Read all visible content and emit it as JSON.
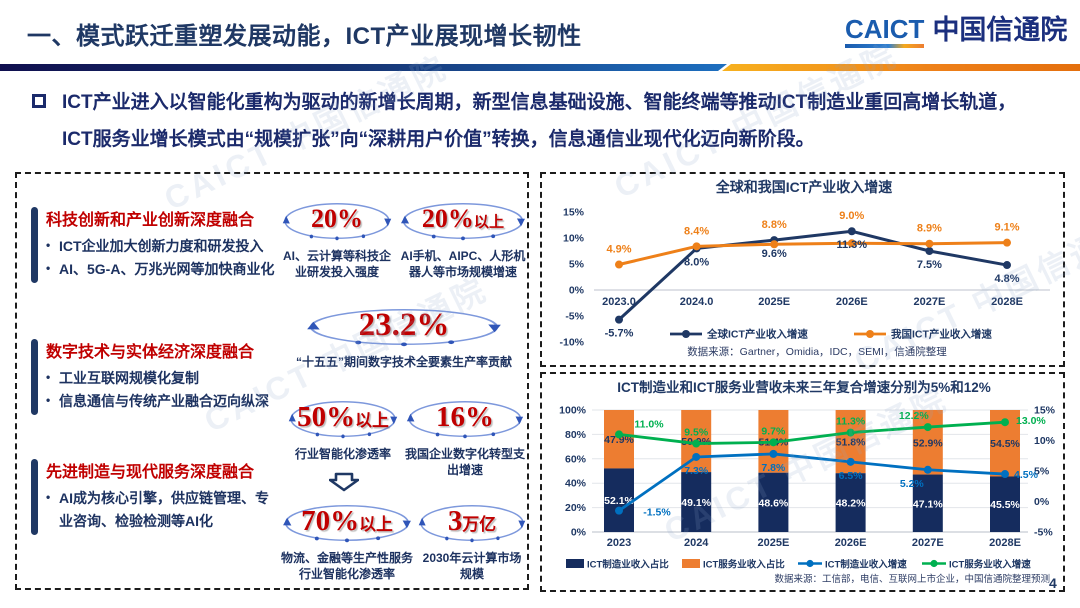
{
  "page": {
    "title": "一、模式跃迁重塑发展动能，ICT产业展现增长韧性",
    "page_number": "4",
    "watermark": "CAICT 中国信通院"
  },
  "logo": {
    "caict": "CAICT",
    "cn": "中国信通院"
  },
  "intro": {
    "text": "ICT产业进入以智能化重构为驱动的新增长周期，新型信息基础设施、智能终端等推动ICT制造业重回高增长轨道，ICT服务业增长模式由“规模扩张”向“深耕用户价值”转换，信息通信业现代化迈向新阶段。"
  },
  "left_panel": {
    "sections": [
      {
        "heading": "科技创新和产业创新深度融合",
        "bullets": [
          "ICT企业加大创新力度和研发投入",
          "AI、5G-A、万兆光网等加快商业化"
        ]
      },
      {
        "heading": "数字技术与实体经济深度融合",
        "bullets": [
          "工业互联网规模化复制",
          "信息通信与传统产业融合迈向纵深"
        ]
      },
      {
        "heading": "先进制造与现代服务深度融合",
        "bullets": [
          "AI成为核心引擎，供应链管理、专业咨询、检验检测等AI化"
        ]
      }
    ],
    "stats": [
      {
        "value": "20%",
        "suffix": "",
        "caption": "AI、云计算等科技企业研发投入强度"
      },
      {
        "value": "20%",
        "suffix": "以上",
        "caption": "AI手机、AIPC、人形机器人等市场规模增速"
      },
      {
        "value": "23.2%",
        "suffix": "",
        "caption": "“十五五”期间数字技术全要素生产率贡献"
      },
      {
        "value": "50%",
        "suffix": "以上",
        "caption": "行业智能化渗透率"
      },
      {
        "value": "16%",
        "suffix": "",
        "caption": "我国企业数字化转型支出增速"
      },
      {
        "value": "70%",
        "suffix": "以上",
        "caption": "物流、金融等生产性服务行业智能化渗透率"
      },
      {
        "value": "3",
        "suffix": "万亿",
        "caption": "2030年云计算市场规模"
      }
    ]
  },
  "chart_data": [
    {
      "type": "line",
      "title": "全球和我国ICT产业收入增速",
      "categories": [
        "2023.0",
        "2024.0",
        "2025E",
        "2026E",
        "2027E",
        "2028E"
      ],
      "series": [
        {
          "name": "全球ICT产业收入增速",
          "color": "#1f3864",
          "values": [
            -5.7,
            8.0,
            9.6,
            11.3,
            7.5,
            4.8
          ]
        },
        {
          "name": "我国ICT产业收入增速",
          "color": "#ee8019",
          "values": [
            4.9,
            8.4,
            8.8,
            9.0,
            8.9,
            9.1
          ]
        }
      ],
      "ylim": [
        -10,
        15
      ],
      "ytick_values": [
        15,
        10,
        5,
        0,
        -5,
        -10
      ],
      "grid": "zero-line-only",
      "legend_position": "bottom",
      "source": "数据来源：Gartner，Omidia，IDC，SEMI，信通院整理"
    },
    {
      "type": "bar",
      "subtype": "stacked-bar-with-lines",
      "title": "ICT制造业和ICT服务业营收未来三年复合增速分别为5%和12%",
      "categories": [
        "2023",
        "2024",
        "2025E",
        "2026E",
        "2027E",
        "2028E"
      ],
      "bar_series": [
        {
          "name": "ICT制造业收入占比",
          "color": "#152c5e",
          "axis": "left",
          "values": [
            52.1,
            49.1,
            48.6,
            48.2,
            47.1,
            45.5
          ]
        },
        {
          "name": "ICT服务业收入占比",
          "color": "#ed7d31",
          "axis": "left",
          "values": [
            47.9,
            50.9,
            51.4,
            51.8,
            52.9,
            54.5
          ]
        }
      ],
      "line_series": [
        {
          "name": "ICT制造业收入增速",
          "color": "#0070c0",
          "axis": "right",
          "values": [
            -1.5,
            7.3,
            7.8,
            6.5,
            5.2,
            4.5
          ]
        },
        {
          "name": "ICT服务业收入增速",
          "color": "#00b050",
          "axis": "right",
          "values": [
            11.0,
            9.5,
            9.7,
            11.3,
            12.2,
            13.0
          ]
        }
      ],
      "left_ylim": [
        0,
        100
      ],
      "right_ylim": [
        -5,
        15
      ],
      "left_tick_values": [
        100,
        80,
        60,
        40,
        20,
        0
      ],
      "right_tick_values": [
        15,
        10,
        5,
        0,
        -5
      ],
      "grid": "horizontal",
      "legend_position": "bottom",
      "source": "数据来源：工信部，电信、互联网上市企业，中国信通院整理预测"
    }
  ]
}
